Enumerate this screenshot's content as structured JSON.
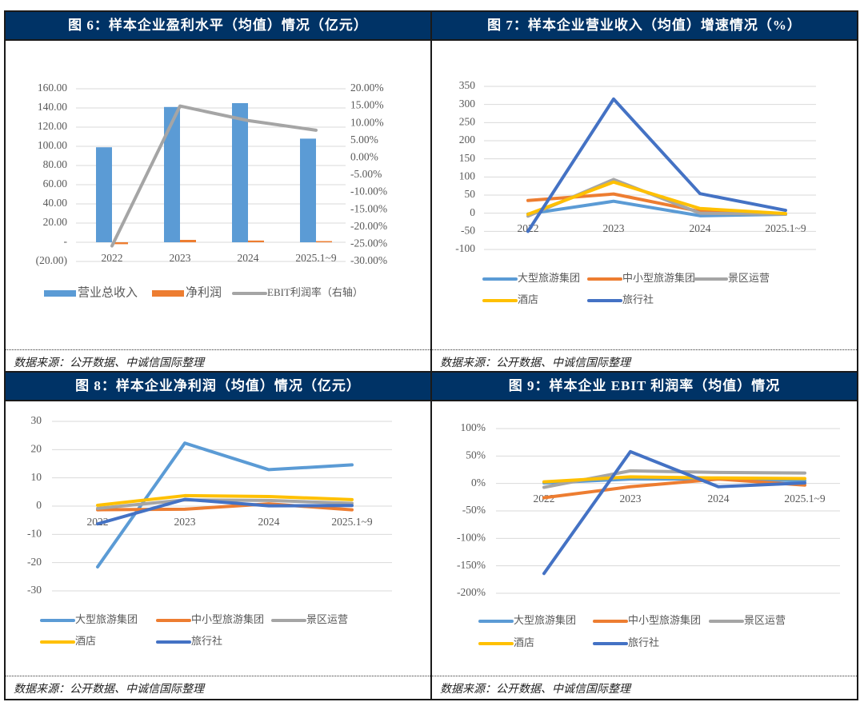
{
  "charts": {
    "c6": {
      "title": "图 6：样本企业盈利水平（均值）情况（亿元）",
      "source": "数据来源：公开数据、中诚信国际整理"
    },
    "c7": {
      "title": "图 7：样本企业营业收入（均值）增速情况（%）",
      "source": "数据来源：公开数据、中诚信国际整理"
    },
    "c8": {
      "title": "图 8：样本企业净利润（均值）情况（亿元）",
      "source": "数据来源：公开数据、中诚信国际整理"
    },
    "c9": {
      "title": "图 9：样本企业 EBIT 利润率（均值）情况",
      "source": "数据来源：公开数据、中诚信国际整理"
    }
  },
  "chart_data": [
    {
      "id": "c6",
      "type": "bar",
      "title": "图 6：样本企业盈利水平（均值）情况（亿元）",
      "categories": [
        "2022",
        "2023",
        "2024",
        "2025.1~9"
      ],
      "ylim": [
        -20,
        160
      ],
      "y_ticks": [
        160,
        140,
        120,
        100,
        80,
        60,
        40,
        20,
        0,
        -20
      ],
      "y_tick_labels": [
        "160.00",
        "140.00",
        "120.00",
        "100.00",
        "80.00",
        "60.00",
        "40.00",
        "20.00",
        "-",
        "(20.00)"
      ],
      "y2lim": [
        -30,
        20
      ],
      "y2_tick_labels": [
        "20.00%",
        "15.00%",
        "10.00%",
        "5.00%",
        "0.00%",
        "-5.00%",
        "-10.00%",
        "-15.00%",
        "-20.00%",
        "-25.00%",
        "-30.00%"
      ],
      "grid": true,
      "legend": "bottom",
      "series": [
        {
          "name": "营业总收入",
          "kind": "bar",
          "axis": "left",
          "color": "#5B9BD5",
          "values": [
            99,
            141,
            145,
            108
          ]
        },
        {
          "name": "净利润",
          "kind": "bar",
          "axis": "left",
          "color": "#ED7D31",
          "values": [
            -2,
            2.5,
            1.8,
            1.2
          ]
        },
        {
          "name": "EBIT利润率（右轴）",
          "kind": "line",
          "axis": "right",
          "color": "#A5A5A5",
          "values": [
            -25.5,
            15.0,
            10.8,
            8.0
          ]
        }
      ]
    },
    {
      "id": "c7",
      "type": "line",
      "title": "图 7：样本企业营业收入（均值）增速情况（%）",
      "categories": [
        "2022",
        "2023",
        "2024",
        "2025.1~9"
      ],
      "ylim": [
        -100,
        350
      ],
      "y_ticks": [
        350,
        300,
        250,
        200,
        150,
        100,
        50,
        0,
        -50,
        -100
      ],
      "grid": true,
      "legend": "bottom",
      "series": [
        {
          "name": "大型旅游集团",
          "color": "#5B9BD5",
          "values": [
            -2,
            33,
            -7,
            -3
          ]
        },
        {
          "name": "中小型旅游集团",
          "color": "#ED7D31",
          "values": [
            35,
            53,
            5,
            -2
          ]
        },
        {
          "name": "景区运营",
          "color": "#A5A5A5",
          "values": [
            -8,
            93,
            0,
            -3
          ]
        },
        {
          "name": "酒店",
          "color": "#FFC000",
          "values": [
            -3,
            86,
            13,
            -1
          ]
        },
        {
          "name": "旅行社",
          "color": "#4472C4",
          "values": [
            -50,
            315,
            54,
            8
          ]
        }
      ]
    },
    {
      "id": "c8",
      "type": "line",
      "title": "图 8：样本企业净利润（均值）情况（亿元）",
      "categories": [
        "2022",
        "2023",
        "2024",
        "2025.1~9"
      ],
      "ylim": [
        -30,
        30
      ],
      "y_ticks": [
        30,
        20,
        10,
        0,
        -10,
        -20,
        -30
      ],
      "grid": true,
      "legend": "bottom",
      "series": [
        {
          "name": "大型旅游集团",
          "color": "#5B9BD5",
          "values": [
            -21.5,
            22.3,
            12.9,
            14.6
          ]
        },
        {
          "name": "中小型旅游集团",
          "color": "#ED7D31",
          "values": [
            -1.3,
            -1.1,
            0.8,
            -1.3
          ]
        },
        {
          "name": "景区运营",
          "color": "#A5A5A5",
          "values": [
            -0.8,
            2.2,
            2.0,
            1.0
          ]
        },
        {
          "name": "酒店",
          "color": "#FFC000",
          "values": [
            0.3,
            3.7,
            3.4,
            2.3
          ]
        },
        {
          "name": "旅行社",
          "color": "#4472C4",
          "values": [
            -6.3,
            2.4,
            0.1,
            0.2
          ]
        }
      ]
    },
    {
      "id": "c9",
      "type": "line",
      "title": "图 9：样本企业 EBIT 利润率（均值）情况",
      "categories": [
        "2022",
        "2023",
        "2024",
        "2025.1~9"
      ],
      "ylim": [
        -200,
        100
      ],
      "y_ticks": [
        100,
        50,
        0,
        -50,
        -100,
        -150,
        -200
      ],
      "y_tick_labels": [
        "100%",
        "50%",
        "0%",
        "-50%",
        "-100%",
        "-150%",
        "-200%"
      ],
      "grid": true,
      "legend": "bottom",
      "series": [
        {
          "name": "大型旅游集团",
          "color": "#5B9BD5",
          "values": [
            1,
            8,
            8,
            5
          ]
        },
        {
          "name": "中小型旅游集团",
          "color": "#ED7D31",
          "values": [
            -26,
            -6,
            8,
            -3
          ]
        },
        {
          "name": "景区运营",
          "color": "#A5A5A5",
          "values": [
            -7,
            23,
            20,
            19
          ]
        },
        {
          "name": "酒店",
          "color": "#FFC000",
          "values": [
            3,
            12,
            10,
            9
          ]
        },
        {
          "name": "旅行社",
          "color": "#4472C4",
          "values": [
            -164,
            58,
            -6,
            1
          ]
        }
      ]
    }
  ]
}
